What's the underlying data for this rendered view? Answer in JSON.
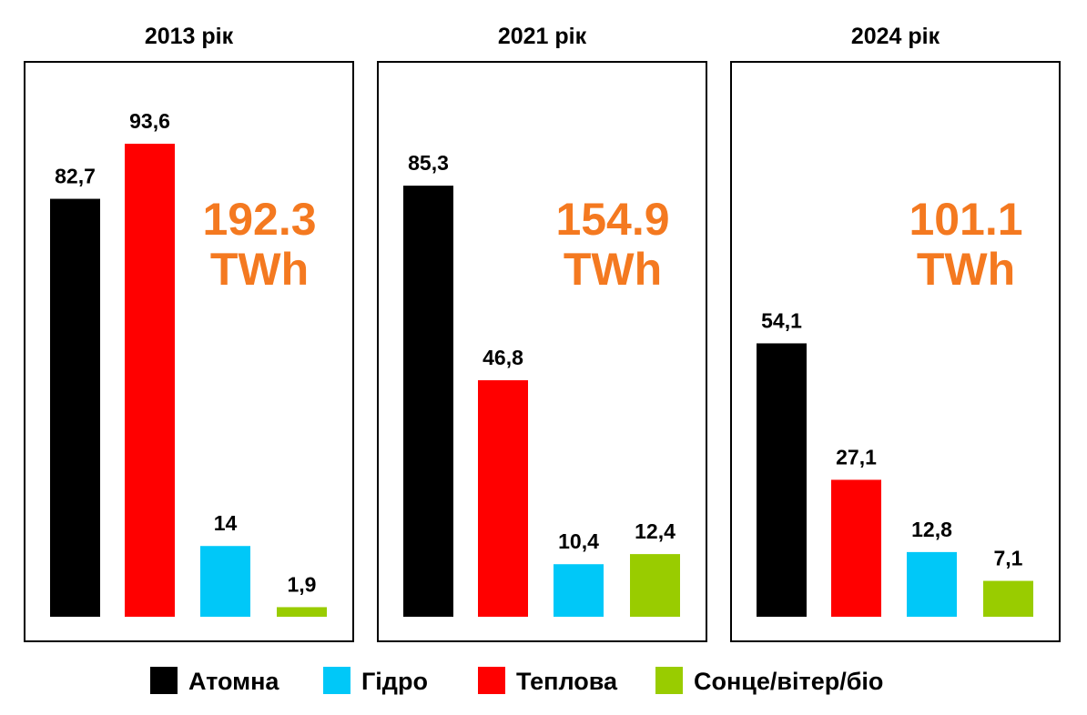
{
  "chart_data": {
    "type": "bar",
    "unit": "TWh",
    "categories": [
      "Атомна",
      "Теплова",
      "Гідро",
      "Сонце/вітер/біо"
    ],
    "colors": {
      "Атомна": "#000000",
      "Теплова": "#ff0000",
      "Гідро": "#00c8f8",
      "Сонце/вітер/біо": "#99cc00"
    },
    "total_color": "#f47920",
    "ylim": [
      0,
      100
    ],
    "panels": [
      {
        "title": "2013 рік",
        "total": "192.3",
        "total_unit": "TWh",
        "values": [
          82.7,
          93.6,
          14,
          1.9
        ],
        "labels": [
          "82,7",
          "93,6",
          "14",
          "1,9"
        ]
      },
      {
        "title": "2021 рік",
        "total": "154.9",
        "total_unit": "TWh",
        "values": [
          85.3,
          46.8,
          10.4,
          12.4
        ],
        "labels": [
          "85,3",
          "46,8",
          "10,4",
          "12,4"
        ]
      },
      {
        "title": "2024 рік",
        "total": "101.1",
        "total_unit": "TWh",
        "values": [
          54.1,
          27.1,
          12.8,
          7.1
        ],
        "labels": [
          "54,1",
          "27,1",
          "12,8",
          "7,1"
        ]
      }
    ],
    "legend": {
      "placement": "bottom",
      "entries": [
        {
          "label": "Атомна",
          "color": "#000000"
        },
        {
          "label": "Гідро",
          "color": "#00c8f8"
        },
        {
          "label": "Теплова",
          "color": "#ff0000"
        },
        {
          "label": "Сонце/вітер/біо",
          "color": "#99cc00"
        }
      ]
    }
  }
}
